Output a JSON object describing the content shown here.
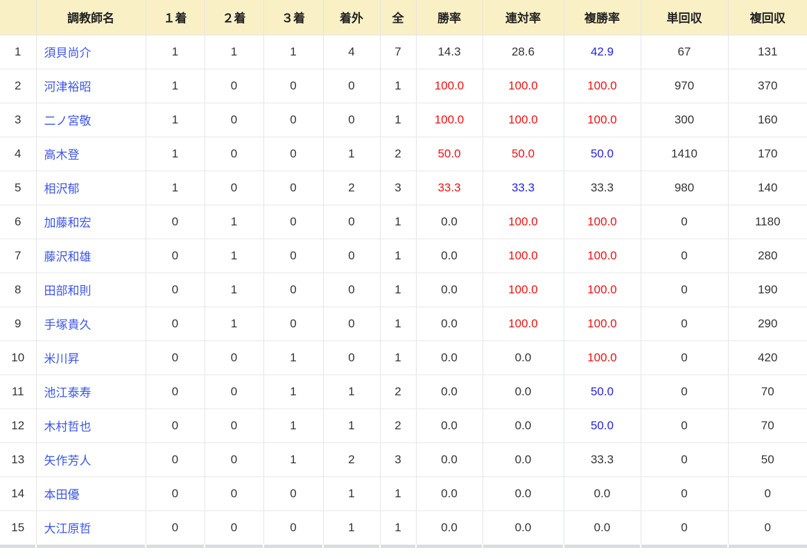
{
  "colors": {
    "header_bg": "#faf0c6",
    "text": "#333333",
    "link": "#3c55e8",
    "red": "#ee1111",
    "blue": "#2323e0"
  },
  "table": {
    "headers": [
      "",
      "調教師名",
      "１着",
      "２着",
      "３着",
      "着外",
      "全",
      "勝率",
      "連対率",
      "複勝率",
      "単回収",
      "複回収"
    ],
    "rows": [
      {
        "rank": "1",
        "name": "須貝尚介",
        "first": "1",
        "second": "1",
        "third": "1",
        "out": "4",
        "total": "7",
        "win_rate": {
          "value": "14.3",
          "color": null
        },
        "quinella_rate": {
          "value": "28.6",
          "color": null
        },
        "show_rate": {
          "value": "42.9",
          "color": "blue"
        },
        "win_return": "67",
        "show_return": "131"
      },
      {
        "rank": "2",
        "name": "河津裕昭",
        "first": "1",
        "second": "0",
        "third": "0",
        "out": "0",
        "total": "1",
        "win_rate": {
          "value": "100.0",
          "color": "red"
        },
        "quinella_rate": {
          "value": "100.0",
          "color": "red"
        },
        "show_rate": {
          "value": "100.0",
          "color": "red"
        },
        "win_return": "970",
        "show_return": "370"
      },
      {
        "rank": "3",
        "name": "二ノ宮敬",
        "first": "1",
        "second": "0",
        "third": "0",
        "out": "0",
        "total": "1",
        "win_rate": {
          "value": "100.0",
          "color": "red"
        },
        "quinella_rate": {
          "value": "100.0",
          "color": "red"
        },
        "show_rate": {
          "value": "100.0",
          "color": "red"
        },
        "win_return": "300",
        "show_return": "160"
      },
      {
        "rank": "4",
        "name": "高木登",
        "first": "1",
        "second": "0",
        "third": "0",
        "out": "1",
        "total": "2",
        "win_rate": {
          "value": "50.0",
          "color": "red"
        },
        "quinella_rate": {
          "value": "50.0",
          "color": "red"
        },
        "show_rate": {
          "value": "50.0",
          "color": "blue"
        },
        "win_return": "1410",
        "show_return": "170"
      },
      {
        "rank": "5",
        "name": "相沢郁",
        "first": "1",
        "second": "0",
        "third": "0",
        "out": "2",
        "total": "3",
        "win_rate": {
          "value": "33.3",
          "color": "red"
        },
        "quinella_rate": {
          "value": "33.3",
          "color": "blue"
        },
        "show_rate": {
          "value": "33.3",
          "color": null
        },
        "win_return": "980",
        "show_return": "140"
      },
      {
        "rank": "6",
        "name": "加藤和宏",
        "first": "0",
        "second": "1",
        "third": "0",
        "out": "0",
        "total": "1",
        "win_rate": {
          "value": "0.0",
          "color": null
        },
        "quinella_rate": {
          "value": "100.0",
          "color": "red"
        },
        "show_rate": {
          "value": "100.0",
          "color": "red"
        },
        "win_return": "0",
        "show_return": "1180"
      },
      {
        "rank": "7",
        "name": "藤沢和雄",
        "first": "0",
        "second": "1",
        "third": "0",
        "out": "0",
        "total": "1",
        "win_rate": {
          "value": "0.0",
          "color": null
        },
        "quinella_rate": {
          "value": "100.0",
          "color": "red"
        },
        "show_rate": {
          "value": "100.0",
          "color": "red"
        },
        "win_return": "0",
        "show_return": "280"
      },
      {
        "rank": "8",
        "name": "田部和則",
        "first": "0",
        "second": "1",
        "third": "0",
        "out": "0",
        "total": "1",
        "win_rate": {
          "value": "0.0",
          "color": null
        },
        "quinella_rate": {
          "value": "100.0",
          "color": "red"
        },
        "show_rate": {
          "value": "100.0",
          "color": "red"
        },
        "win_return": "0",
        "show_return": "190"
      },
      {
        "rank": "9",
        "name": "手塚貴久",
        "first": "0",
        "second": "1",
        "third": "0",
        "out": "0",
        "total": "1",
        "win_rate": {
          "value": "0.0",
          "color": null
        },
        "quinella_rate": {
          "value": "100.0",
          "color": "red"
        },
        "show_rate": {
          "value": "100.0",
          "color": "red"
        },
        "win_return": "0",
        "show_return": "290"
      },
      {
        "rank": "10",
        "name": "米川昇",
        "first": "0",
        "second": "0",
        "third": "1",
        "out": "0",
        "total": "1",
        "win_rate": {
          "value": "0.0",
          "color": null
        },
        "quinella_rate": {
          "value": "0.0",
          "color": null
        },
        "show_rate": {
          "value": "100.0",
          "color": "red"
        },
        "win_return": "0",
        "show_return": "420"
      },
      {
        "rank": "11",
        "name": "池江泰寿",
        "first": "0",
        "second": "0",
        "third": "1",
        "out": "1",
        "total": "2",
        "win_rate": {
          "value": "0.0",
          "color": null
        },
        "quinella_rate": {
          "value": "0.0",
          "color": null
        },
        "show_rate": {
          "value": "50.0",
          "color": "blue"
        },
        "win_return": "0",
        "show_return": "70"
      },
      {
        "rank": "12",
        "name": "木村哲也",
        "first": "0",
        "second": "0",
        "third": "1",
        "out": "1",
        "total": "2",
        "win_rate": {
          "value": "0.0",
          "color": null
        },
        "quinella_rate": {
          "value": "0.0",
          "color": null
        },
        "show_rate": {
          "value": "50.0",
          "color": "blue"
        },
        "win_return": "0",
        "show_return": "70"
      },
      {
        "rank": "13",
        "name": "矢作芳人",
        "first": "0",
        "second": "0",
        "third": "1",
        "out": "2",
        "total": "3",
        "win_rate": {
          "value": "0.0",
          "color": null
        },
        "quinella_rate": {
          "value": "0.0",
          "color": null
        },
        "show_rate": {
          "value": "33.3",
          "color": null
        },
        "win_return": "0",
        "show_return": "50"
      },
      {
        "rank": "14",
        "name": "本田優",
        "first": "0",
        "second": "0",
        "third": "0",
        "out": "1",
        "total": "1",
        "win_rate": {
          "value": "0.0",
          "color": null
        },
        "quinella_rate": {
          "value": "0.0",
          "color": null
        },
        "show_rate": {
          "value": "0.0",
          "color": null
        },
        "win_return": "0",
        "show_return": "0"
      },
      {
        "rank": "15",
        "name": "大江原哲",
        "first": "0",
        "second": "0",
        "third": "0",
        "out": "1",
        "total": "1",
        "win_rate": {
          "value": "0.0",
          "color": null
        },
        "quinella_rate": {
          "value": "0.0",
          "color": null
        },
        "show_rate": {
          "value": "0.0",
          "color": null
        },
        "win_return": "0",
        "show_return": "0"
      }
    ]
  }
}
